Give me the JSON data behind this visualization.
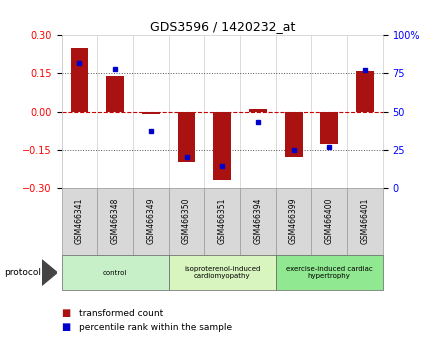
{
  "title": "GDS3596 / 1420232_at",
  "samples": [
    "GSM466341",
    "GSM466348",
    "GSM466349",
    "GSM466350",
    "GSM466351",
    "GSM466394",
    "GSM466399",
    "GSM466400",
    "GSM466401"
  ],
  "transformed_count": [
    0.25,
    0.14,
    -0.01,
    -0.2,
    -0.27,
    0.01,
    -0.18,
    -0.13,
    0.16
  ],
  "percentile_rank": [
    82,
    78,
    37,
    20,
    14,
    43,
    25,
    27,
    77
  ],
  "ylim_left": [
    -0.3,
    0.3
  ],
  "ylim_right": [
    0,
    100
  ],
  "yticks_left": [
    -0.3,
    -0.15,
    0,
    0.15,
    0.3
  ],
  "yticks_right": [
    0,
    25,
    50,
    75,
    100
  ],
  "ytick_labels_right": [
    "0",
    "25",
    "50",
    "75",
    "100%"
  ],
  "groups": [
    {
      "label": "control",
      "start": 0,
      "end": 3,
      "color": "#c8f0c8"
    },
    {
      "label": "isoproterenol-induced\ncardiomyopathy",
      "start": 3,
      "end": 6,
      "color": "#d8f5c0"
    },
    {
      "label": "exercise-induced cardiac\nhypertrophy",
      "start": 6,
      "end": 9,
      "color": "#90e890"
    }
  ],
  "bar_color": "#aa1111",
  "dot_color": "#0000cc",
  "zero_line_color": "#cc0000",
  "grid_color": "#000000",
  "bg_color": "#ffffff",
  "plot_bg": "#ffffff",
  "legend_red_label": "transformed count",
  "legend_blue_label": "percentile rank within the sample",
  "protocol_label": "protocol"
}
